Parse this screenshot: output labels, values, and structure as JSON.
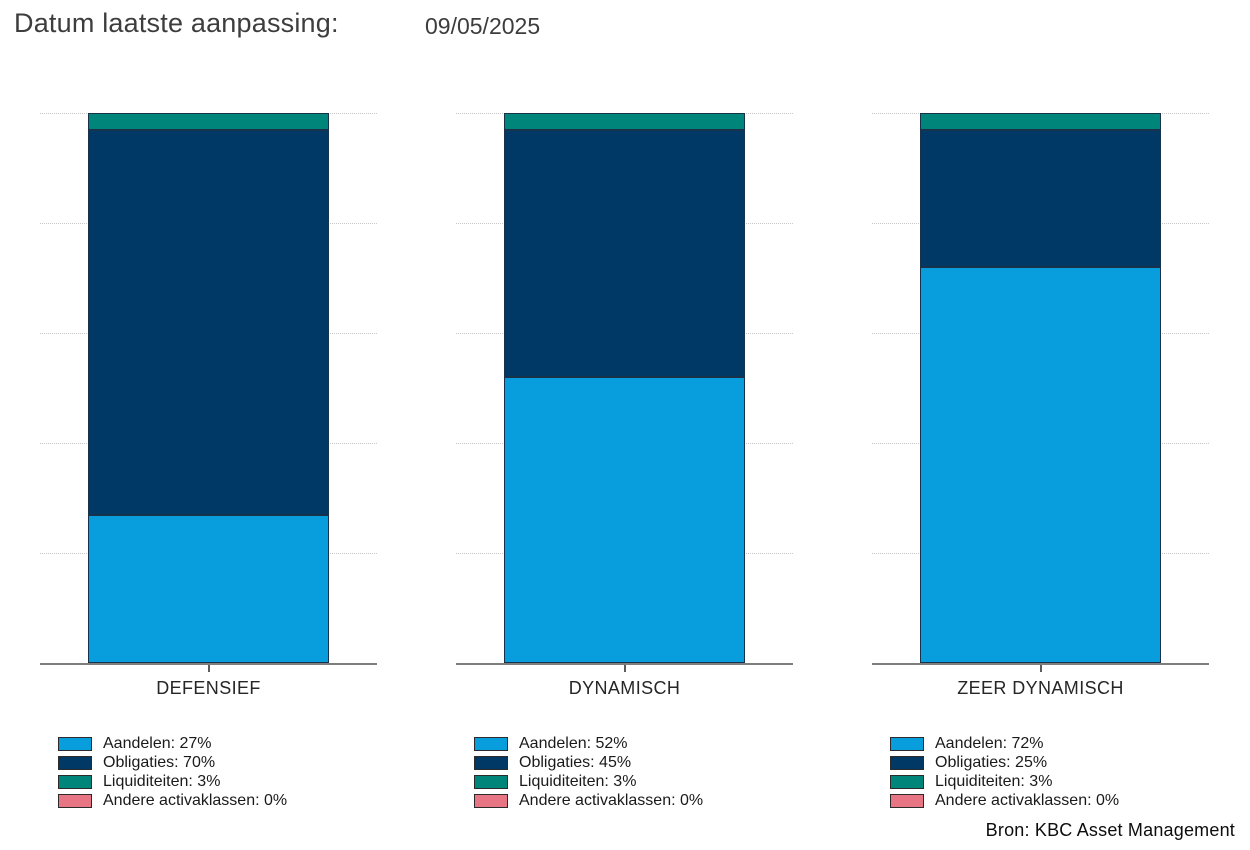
{
  "header": {
    "title": "Datum laatste aanpassing:",
    "date": "09/05/2025"
  },
  "source": "Bron: KBC Asset Management",
  "colors": {
    "aandelen": "#089EDE",
    "obligaties": "#003866",
    "liquiditeiten": "#00857A",
    "andere_activaklassen": "#E87583",
    "grid": "#c6c6c6",
    "axis": "#7e7e7e",
    "segment_border": "#17324a"
  },
  "chart_data": [
    {
      "type": "bar",
      "stacked": true,
      "category": "DEFENSIEF",
      "ylim": [
        0,
        100
      ],
      "grid": true,
      "legend_position": "bottom",
      "series": [
        {
          "name": "Aandelen",
          "value": 27,
          "label": "Aandelen: 27%",
          "color": "#089EDE"
        },
        {
          "name": "Obligaties",
          "value": 70,
          "label": "Obligaties: 70%",
          "color": "#003866"
        },
        {
          "name": "Liquiditeiten",
          "value": 3,
          "label": "Liquiditeiten: 3%",
          "color": "#00857A"
        },
        {
          "name": "Andere activaklassen",
          "value": 0,
          "label": "Andere activaklassen: 0%",
          "color": "#E87583"
        }
      ]
    },
    {
      "type": "bar",
      "stacked": true,
      "category": "DYNAMISCH",
      "ylim": [
        0,
        100
      ],
      "grid": true,
      "legend_position": "bottom",
      "series": [
        {
          "name": "Aandelen",
          "value": 52,
          "label": "Aandelen: 52%",
          "color": "#089EDE"
        },
        {
          "name": "Obligaties",
          "value": 45,
          "label": "Obligaties: 45%",
          "color": "#003866"
        },
        {
          "name": "Liquiditeiten",
          "value": 3,
          "label": "Liquiditeiten: 3%",
          "color": "#00857A"
        },
        {
          "name": "Andere activaklassen",
          "value": 0,
          "label": "Andere activaklassen: 0%",
          "color": "#E87583"
        }
      ]
    },
    {
      "type": "bar",
      "stacked": true,
      "category": "ZEER DYNAMISCH",
      "ylim": [
        0,
        100
      ],
      "grid": true,
      "legend_position": "bottom",
      "series": [
        {
          "name": "Aandelen",
          "value": 72,
          "label": "Aandelen: 72%",
          "color": "#089EDE"
        },
        {
          "name": "Obligaties",
          "value": 25,
          "label": "Obligaties: 25%",
          "color": "#003866"
        },
        {
          "name": "Liquiditeiten",
          "value": 3,
          "label": "Liquiditeiten: 3%",
          "color": "#00857A"
        },
        {
          "name": "Andere activaklassen",
          "value": 0,
          "label": "Andere activaklassen: 0%",
          "color": "#E87583"
        }
      ]
    }
  ]
}
